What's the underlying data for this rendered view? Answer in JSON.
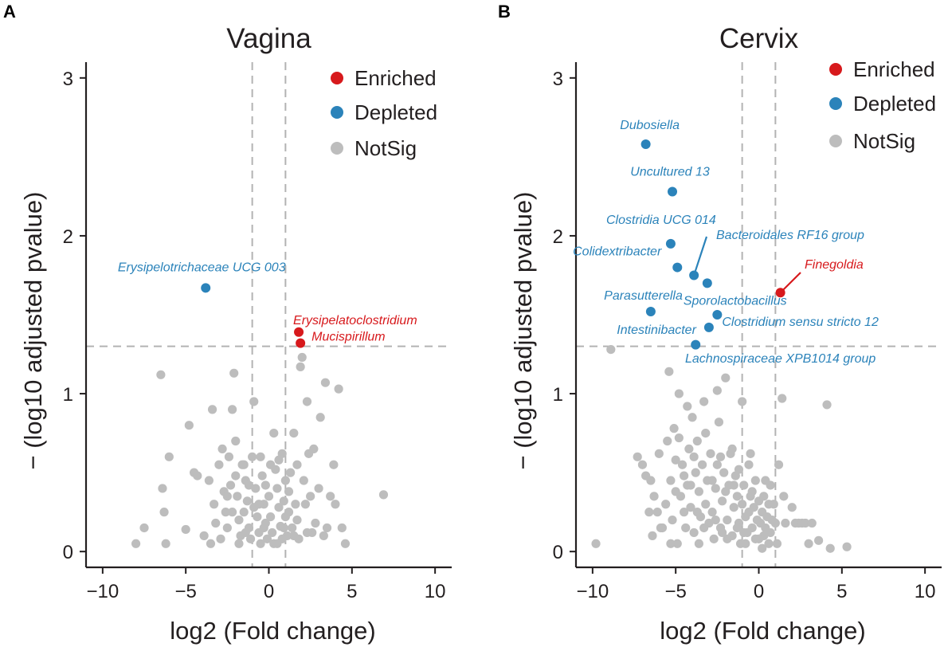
{
  "colors": {
    "Enriched": "#d7191c",
    "Depleted": "#2b83ba",
    "NotSig": "#bdbdbd",
    "axis": "#231f20",
    "refline": "#b3b3b3"
  },
  "chart_data": [
    {
      "panel": "A",
      "type": "scatter",
      "title": "Vagina",
      "xlabel": "log2 (Fold change)",
      "ylabel": "− (log10 adjusted pvalue)",
      "xlim": [
        -11,
        11
      ],
      "ylim": [
        -0.1,
        3.1
      ],
      "xticks": [
        -10,
        -5,
        0,
        5,
        10
      ],
      "xtick_labels": [
        "−10",
        "−5",
        "0",
        "5",
        "10"
      ],
      "yticks": [
        0,
        1,
        2,
        3
      ],
      "ytick_labels": [
        "0",
        "1",
        "2",
        "3"
      ],
      "vlines": [
        -1,
        1
      ],
      "hline": 1.3,
      "legend": {
        "position": "top-right",
        "entries": [
          "Enriched",
          "Depleted",
          "NotSig"
        ]
      },
      "significant": [
        {
          "name": "Erysipelotrichaceae UCG 003",
          "x": -3.8,
          "y": 1.67,
          "group": "Depleted"
        },
        {
          "name": "Erysipelatoclostridium",
          "x": 1.8,
          "y": 1.39,
          "group": "Enriched"
        },
        {
          "name": "Mucispirillum",
          "x": 1.9,
          "y": 1.32,
          "group": "Enriched"
        }
      ],
      "notsig": [
        [
          -8.0,
          0.05
        ],
        [
          -7.5,
          0.15
        ],
        [
          -6.5,
          1.12
        ],
        [
          -6.4,
          0.4
        ],
        [
          -6.3,
          0.25
        ],
        [
          -6.2,
          0.05
        ],
        [
          -6.0,
          0.6
        ],
        [
          -5.0,
          0.14
        ],
        [
          -4.8,
          0.8
        ],
        [
          -4.5,
          0.5
        ],
        [
          -4.3,
          0.48
        ],
        [
          -3.9,
          0.1
        ],
        [
          -3.6,
          0.45
        ],
        [
          -3.4,
          0.9
        ],
        [
          -3.3,
          0.3
        ],
        [
          -3.2,
          0.18
        ],
        [
          -3.0,
          0.55
        ],
        [
          -2.8,
          0.65
        ],
        [
          -2.7,
          0.38
        ],
        [
          -2.6,
          0.25
        ],
        [
          -2.5,
          0.15
        ],
        [
          -2.4,
          0.6
        ],
        [
          -2.3,
          0.42
        ],
        [
          -2.2,
          0.9
        ],
        [
          -2.1,
          1.13
        ],
        [
          -2.0,
          0.7
        ],
        [
          -1.9,
          0.35
        ],
        [
          -1.8,
          0.2
        ],
        [
          -1.7,
          0.1
        ],
        [
          -1.6,
          0.55
        ],
        [
          -1.5,
          0.25
        ],
        [
          -1.4,
          0.45
        ],
        [
          -1.3,
          0.32
        ],
        [
          -1.2,
          0.15
        ],
        [
          -1.1,
          0.08
        ],
        [
          -1.0,
          0.6
        ],
        [
          -0.9,
          0.95
        ],
        [
          -0.8,
          0.4
        ],
        [
          -0.7,
          0.22
        ],
        [
          -0.6,
          0.12
        ],
        [
          -0.5,
          0.05
        ],
        [
          -0.4,
          0.48
        ],
        [
          -0.3,
          0.3
        ],
        [
          -0.2,
          0.18
        ],
        [
          -0.1,
          0.08
        ],
        [
          0.0,
          0.35
        ],
        [
          0.1,
          0.22
        ],
        [
          0.2,
          0.12
        ],
        [
          0.3,
          0.05
        ],
        [
          0.4,
          0.52
        ],
        [
          0.5,
          0.4
        ],
        [
          0.6,
          0.28
        ],
        [
          0.7,
          0.16
        ],
        [
          0.8,
          0.62
        ],
        [
          0.9,
          0.32
        ],
        [
          1.0,
          0.22
        ],
        [
          1.1,
          0.1
        ],
        [
          1.2,
          0.38
        ],
        [
          1.3,
          0.5
        ],
        [
          1.4,
          0.15
        ],
        [
          1.5,
          0.75
        ],
        [
          1.6,
          0.3
        ],
        [
          1.7,
          0.2
        ],
        [
          1.8,
          0.08
        ],
        [
          1.9,
          1.17
        ],
        [
          2.0,
          1.23
        ],
        [
          2.1,
          0.45
        ],
        [
          2.2,
          0.3
        ],
        [
          2.3,
          0.95
        ],
        [
          2.4,
          0.62
        ],
        [
          2.5,
          0.35
        ],
        [
          2.6,
          0.12
        ],
        [
          2.7,
          0.65
        ],
        [
          2.8,
          0.18
        ],
        [
          3.0,
          0.4
        ],
        [
          3.1,
          0.85
        ],
        [
          3.3,
          0.1
        ],
        [
          3.5,
          0.15
        ],
        [
          3.7,
          0.35
        ],
        [
          3.9,
          0.55
        ],
        [
          4.0,
          0.3
        ],
        [
          4.2,
          1.03
        ],
        [
          4.4,
          0.15
        ],
        [
          4.6,
          0.05
        ],
        [
          -2.9,
          0.08
        ],
        [
          -2.5,
          0.35
        ],
        [
          -2.0,
          0.48
        ],
        [
          -1.5,
          0.55
        ],
        [
          -0.5,
          0.6
        ],
        [
          0.3,
          0.75
        ],
        [
          0.6,
          0.58
        ],
        [
          1.0,
          0.45
        ],
        [
          1.5,
          0.1
        ],
        [
          -1.2,
          0.42
        ],
        [
          -0.9,
          0.28
        ],
        [
          -0.3,
          0.15
        ],
        [
          0.5,
          0.05
        ],
        [
          1.2,
          0.25
        ],
        [
          1.7,
          0.55
        ],
        [
          2.3,
          0.12
        ],
        [
          -3.5,
          0.05
        ],
        [
          -1.8,
          0.05
        ],
        [
          -0.6,
          0.3
        ],
        [
          0.1,
          0.55
        ],
        [
          0.8,
          0.08
        ],
        [
          6.9,
          0.36
        ],
        [
          3.4,
          1.07
        ],
        [
          -0.2,
          0.42
        ],
        [
          0.9,
          0.15
        ],
        [
          -1.4,
          0.12
        ],
        [
          -2.2,
          0.25
        ]
      ]
    },
    {
      "panel": "B",
      "type": "scatter",
      "title": "Cervix",
      "xlabel": "log2 (Fold change)",
      "ylabel": "− (log10 adjusted pvalue)",
      "xlim": [
        -11,
        11
      ],
      "ylim": [
        -0.1,
        3.1
      ],
      "xticks": [
        -10,
        -5,
        0,
        5,
        10
      ],
      "xtick_labels": [
        "−10",
        "−5",
        "0",
        "5",
        "10"
      ],
      "yticks": [
        0,
        1,
        2,
        3
      ],
      "ytick_labels": [
        "0",
        "1",
        "2",
        "3"
      ],
      "vlines": [
        -1,
        1
      ],
      "hline": 1.3,
      "legend": {
        "position": "top-right",
        "entries": [
          "Enriched",
          "Depleted",
          "NotSig"
        ]
      },
      "significant": [
        {
          "name": "Dubosiella",
          "x": -6.8,
          "y": 2.58,
          "group": "Depleted"
        },
        {
          "name": "Uncultured 13",
          "x": -5.2,
          "y": 2.28,
          "group": "Depleted"
        },
        {
          "name": "Clostridia UCG 014",
          "x": -5.3,
          "y": 1.95,
          "group": "Depleted"
        },
        {
          "name": "Colidextribacter",
          "x": -4.9,
          "y": 1.8,
          "group": "Depleted"
        },
        {
          "name": "Bacteroidales RF16 group",
          "x": -3.9,
          "y": 1.75,
          "group": "Depleted"
        },
        {
          "name": "Sporolactobacillus",
          "x": -3.1,
          "y": 1.7,
          "group": "Depleted"
        },
        {
          "name": "Parasutterella",
          "x": -6.5,
          "y": 1.52,
          "group": "Depleted"
        },
        {
          "name": "Clostridium sensu stricto 12",
          "x": -2.5,
          "y": 1.5,
          "group": "Depleted"
        },
        {
          "name": "Intestinibacter",
          "x": -3.0,
          "y": 1.42,
          "group": "Depleted"
        },
        {
          "name": "Lachnospiraceae XPB1014 group",
          "x": -3.8,
          "y": 1.31,
          "group": "Depleted"
        },
        {
          "name": "Finegoldia",
          "x": 1.3,
          "y": 1.64,
          "group": "Enriched"
        }
      ],
      "notsig": [
        [
          -9.8,
          0.05
        ],
        [
          -8.9,
          1.28
        ],
        [
          -7.3,
          0.6
        ],
        [
          -7.0,
          0.55
        ],
        [
          -6.8,
          0.48
        ],
        [
          -6.5,
          0.45
        ],
        [
          -6.4,
          0.1
        ],
        [
          -6.3,
          0.35
        ],
        [
          -6.1,
          0.25
        ],
        [
          -6.0,
          0.62
        ],
        [
          -5.8,
          0.15
        ],
        [
          -5.6,
          0.3
        ],
        [
          -5.5,
          0.7
        ],
        [
          -5.4,
          1.14
        ],
        [
          -5.3,
          0.45
        ],
        [
          -5.2,
          0.2
        ],
        [
          -5.1,
          0.78
        ],
        [
          -5.0,
          0.58
        ],
        [
          -4.9,
          0.05
        ],
        [
          -4.8,
          1.0
        ],
        [
          -4.7,
          0.35
        ],
        [
          -4.6,
          0.55
        ],
        [
          -4.5,
          0.25
        ],
        [
          -4.4,
          0.15
        ],
        [
          -4.3,
          0.42
        ],
        [
          -4.2,
          0.65
        ],
        [
          -4.1,
          0.28
        ],
        [
          -4.0,
          0.85
        ],
        [
          -3.9,
          0.12
        ],
        [
          -3.8,
          0.5
        ],
        [
          -3.7,
          0.7
        ],
        [
          -3.6,
          0.38
        ],
        [
          -3.5,
          0.22
        ],
        [
          -3.4,
          0.55
        ],
        [
          -3.3,
          0.95
        ],
        [
          -3.2,
          0.3
        ],
        [
          -3.1,
          0.45
        ],
        [
          -3.0,
          0.18
        ],
        [
          -2.9,
          0.62
        ],
        [
          -2.8,
          0.25
        ],
        [
          -2.7,
          0.08
        ],
        [
          -2.6,
          0.4
        ],
        [
          -2.5,
          0.55
        ],
        [
          -2.4,
          0.82
        ],
        [
          -2.3,
          0.15
        ],
        [
          -2.2,
          0.32
        ],
        [
          -2.1,
          0.5
        ],
        [
          -2.0,
          1.1
        ],
        [
          -1.9,
          0.2
        ],
        [
          -1.8,
          0.42
        ],
        [
          -1.7,
          0.62
        ],
        [
          -1.6,
          0.1
        ],
        [
          -1.5,
          0.28
        ],
        [
          -1.4,
          0.48
        ],
        [
          -1.3,
          0.35
        ],
        [
          -1.2,
          0.18
        ],
        [
          -1.1,
          0.05
        ],
        [
          -1.0,
          0.3
        ],
        [
          -0.9,
          0.42
        ],
        [
          -0.8,
          0.22
        ],
        [
          -0.7,
          0.12
        ],
        [
          -0.6,
          0.25
        ],
        [
          -0.5,
          0.35
        ],
        [
          -0.4,
          0.15
        ],
        [
          -0.3,
          0.28
        ],
        [
          -0.2,
          0.08
        ],
        [
          -0.1,
          0.2
        ],
        [
          0.0,
          0.32
        ],
        [
          0.1,
          0.18
        ],
        [
          0.2,
          0.25
        ],
        [
          0.3,
          0.1
        ],
        [
          0.4,
          0.15
        ],
        [
          0.5,
          0.22
        ],
        [
          0.6,
          0.05
        ],
        [
          0.7,
          0.12
        ],
        [
          0.8,
          0.2
        ],
        [
          0.9,
          0.3
        ],
        [
          1.0,
          0.18
        ],
        [
          1.2,
          0.55
        ],
        [
          1.4,
          0.97
        ],
        [
          1.5,
          0.35
        ],
        [
          1.6,
          0.18
        ],
        [
          2.0,
          0.28
        ],
        [
          2.2,
          0.18
        ],
        [
          2.4,
          0.18
        ],
        [
          2.6,
          0.18
        ],
        [
          2.8,
          0.18
        ],
        [
          3.0,
          0.05
        ],
        [
          3.2,
          0.18
        ],
        [
          3.6,
          0.07
        ],
        [
          4.1,
          0.93
        ],
        [
          4.3,
          0.02
        ],
        [
          5.3,
          0.03
        ],
        [
          -4.8,
          0.72
        ],
        [
          -4.3,
          0.92
        ],
        [
          -3.9,
          0.6
        ],
        [
          -3.6,
          0.05
        ],
        [
          -3.2,
          0.75
        ],
        [
          -2.8,
          0.45
        ],
        [
          -2.3,
          0.6
        ],
        [
          -2.0,
          0.38
        ],
        [
          -1.6,
          0.65
        ],
        [
          -1.2,
          0.52
        ],
        [
          -0.8,
          0.05
        ],
        [
          -0.5,
          0.62
        ],
        [
          -0.2,
          0.45
        ],
        [
          0.3,
          0.35
        ],
        [
          0.7,
          0.42
        ],
        [
          1.1,
          0.05
        ],
        [
          -6.6,
          0.25
        ],
        [
          -5.9,
          0.15
        ],
        [
          -5.3,
          0.05
        ],
        [
          -4.5,
          0.48
        ],
        [
          -3.3,
          0.15
        ],
        [
          -2.6,
          0.2
        ],
        [
          -1.9,
          0.08
        ],
        [
          -1.3,
          0.15
        ],
        [
          -0.6,
          0.55
        ],
        [
          0.0,
          0.08
        ],
        [
          0.4,
          0.45
        ],
        [
          -1.0,
          0.95
        ],
        [
          -2.5,
          1.02
        ],
        [
          -4.1,
          0.42
        ],
        [
          -5.0,
          0.38
        ],
        [
          -3.7,
          0.25
        ],
        [
          -2.2,
          0.12
        ],
        [
          -1.5,
          0.42
        ],
        [
          -0.9,
          0.12
        ],
        [
          -0.4,
          0.38
        ],
        [
          0.2,
          0.02
        ],
        [
          0.6,
          0.3
        ]
      ]
    }
  ]
}
